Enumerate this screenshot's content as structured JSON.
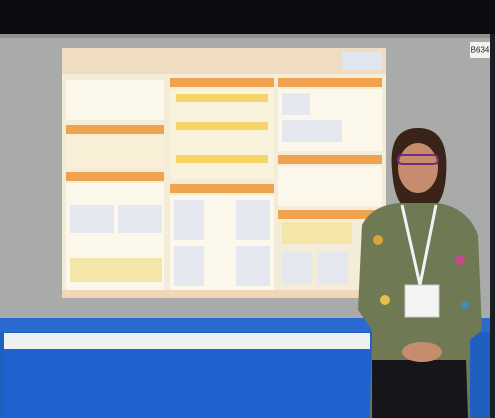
{
  "booth_label": "B634"
}
